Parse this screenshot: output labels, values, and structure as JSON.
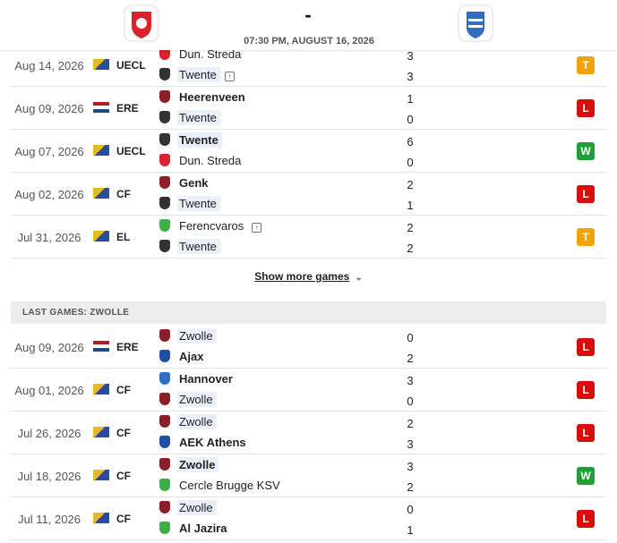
{
  "header": {
    "score": "-",
    "datetime": "07:30 PM, AUGUST 16, 2026"
  },
  "twente": {
    "games": [
      {
        "date": "Aug 14, 2026",
        "competition": "UECL",
        "home": "Dun. Streda",
        "away": "Twente",
        "home_score": 3,
        "away_score": 3,
        "result": "T"
      },
      {
        "date": "Aug 09, 2026",
        "competition": "ERE",
        "home": "Heerenveen",
        "away": "Twente",
        "home_score": 1,
        "away_score": 0,
        "result": "L"
      },
      {
        "date": "Aug 07, 2026",
        "competition": "UECL",
        "home": "Twente",
        "away": "Dun. Streda",
        "home_score": 6,
        "away_score": 0,
        "result": "W"
      },
      {
        "date": "Aug 02, 2026",
        "competition": "CF",
        "home": "Genk",
        "away": "Twente",
        "home_score": 2,
        "away_score": 1,
        "result": "L"
      },
      {
        "date": "Jul 31, 2026",
        "competition": "EL",
        "home": "Ferencvaros",
        "away": "Twente",
        "home_score": 2,
        "away_score": 2,
        "result": "T"
      }
    ],
    "show_more": "Show more games"
  },
  "zwolle": {
    "title": "LAST GAMES: ZWOLLE",
    "games": [
      {
        "date": "Aug 09, 2026",
        "competition": "ERE",
        "home": "Zwolle",
        "away": "Ajax",
        "home_score": 0,
        "away_score": 2,
        "result": "L"
      },
      {
        "date": "Aug 01, 2026",
        "competition": "CF",
        "home": "Hannover",
        "away": "Zwolle",
        "home_score": 3,
        "away_score": 0,
        "result": "L"
      },
      {
        "date": "Jul 26, 2026",
        "competition": "CF",
        "home": "Zwolle",
        "away": "AEK Athens",
        "home_score": 2,
        "away_score": 3,
        "result": "L"
      },
      {
        "date": "Jul 18, 2026",
        "competition": "CF",
        "home": "Zwolle",
        "away": "Cercle Brugge KSV",
        "home_score": 3,
        "away_score": 2,
        "result": "W"
      },
      {
        "date": "Jul 11, 2026",
        "competition": "CF",
        "home": "Zwolle",
        "away": "Al Jazira",
        "home_score": 0,
        "away_score": 1,
        "result": "L"
      }
    ]
  }
}
